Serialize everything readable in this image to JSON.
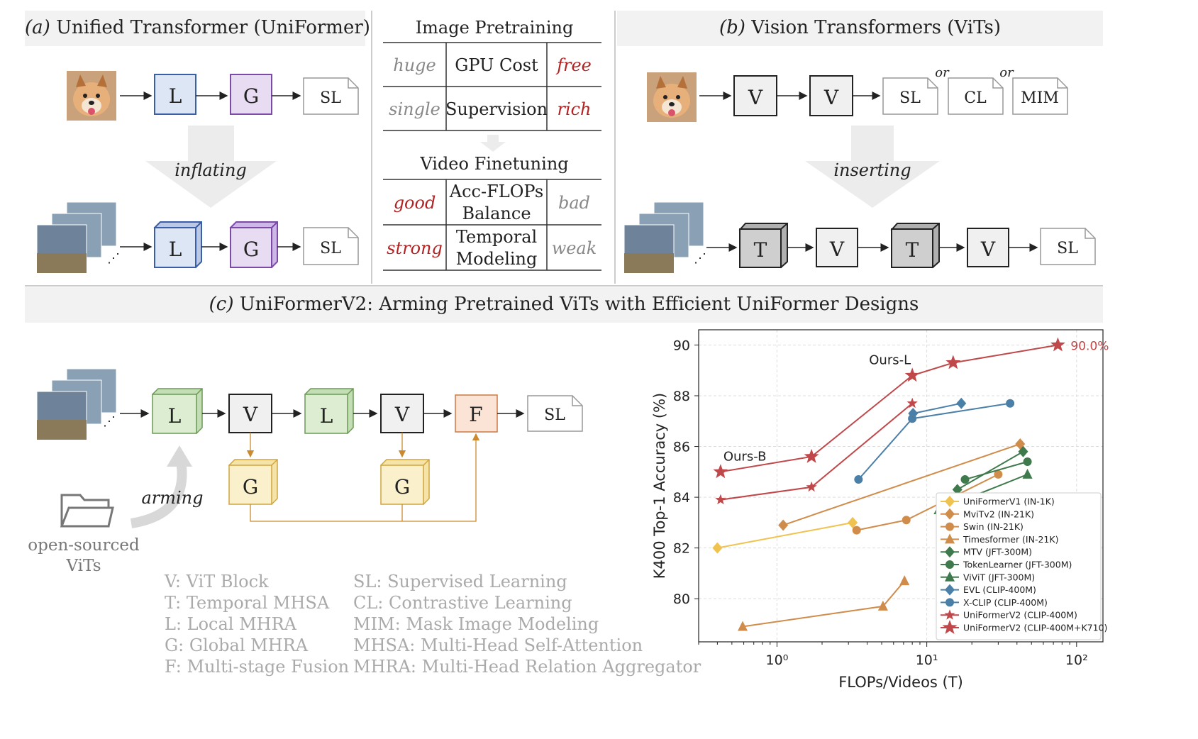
{
  "panel_a": {
    "label": "(a)",
    "title": "Unified Transformer (UniFormer)",
    "top_blocks": [
      "L",
      "G",
      "SL"
    ],
    "arrow_text": "inflating",
    "bottom_blocks": [
      "L",
      "G",
      "SL"
    ]
  },
  "panel_b": {
    "label": "(b)",
    "title": "Vision Transformers (ViTs)",
    "top_blocks": [
      "V",
      "V",
      "SL",
      "CL",
      "MIM"
    ],
    "or_1": "or",
    "or_2": "or",
    "arrow_text": "inserting",
    "bottom_blocks": [
      "T",
      "V",
      "T",
      "V",
      "SL"
    ]
  },
  "middle_tables": {
    "image_title": "Image Pretraining",
    "image_rows": [
      {
        "left": "huge",
        "center": "GPU Cost",
        "right": "free"
      },
      {
        "left": "single",
        "center": "Supervision",
        "right": "rich"
      }
    ],
    "video_title": "Video Finetuning",
    "video_rows": [
      {
        "left": "good",
        "center_1": "Acc-FLOPs",
        "center_2": "Balance",
        "right": "bad"
      },
      {
        "left": "strong",
        "center_1": "Temporal",
        "center_2": "Modeling",
        "right": "weak"
      }
    ]
  },
  "panel_c": {
    "label": "(c)",
    "title": "UniFormerV2: Arming Pretrained ViTs with Efficient UniFormer Designs",
    "blocks": [
      "L",
      "V",
      "L",
      "V",
      "F",
      "SL"
    ],
    "g_blocks": [
      "G",
      "G"
    ],
    "arming_text": "arming",
    "folder_caption_1": "open-sourced",
    "folder_caption_2": "ViTs",
    "legend_left": [
      "V: ViT Block",
      "T: Temporal MHSA",
      "L: Local MHRA",
      "G: Global MHRA",
      "F: Multi-stage Fusion"
    ],
    "legend_right": [
      "SL: Supervised Learning",
      "CL: Contrastive Learning",
      "MIM: Mask Image Modeling",
      "MHSA: Multi-Head Self-Attention",
      "MHRA: Multi-Head Relation Aggregator"
    ]
  },
  "chart_data": {
    "type": "line",
    "xlabel": "FLOPs/Videos (T)",
    "ylabel": "K400 Top-1 Accuracy (%)",
    "xscale": "log",
    "xlim": [
      0.3,
      150
    ],
    "ylim": [
      78.3,
      90.6
    ],
    "yticks": [
      80,
      82,
      84,
      86,
      88,
      90
    ],
    "xticks": [
      {
        "value": 1,
        "label": "10⁰"
      },
      {
        "value": 10,
        "label": "10¹"
      },
      {
        "value": 100,
        "label": "10²"
      }
    ],
    "grid": true,
    "legend_position": "bottom-right",
    "annotations": [
      {
        "text": "Ours-L",
        "x": 8.0,
        "y": 88.8
      },
      {
        "text": "Ours-B",
        "x": 0.42,
        "y": 85.0
      },
      {
        "text": "90.0%",
        "x": 75,
        "y": 90.0
      }
    ],
    "series": [
      {
        "name": "UniFormerV1 (IN-1K)",
        "color": "#f0c24f",
        "marker": "diamond",
        "points": [
          [
            0.4,
            82.0
          ],
          [
            3.2,
            83.0
          ]
        ]
      },
      {
        "name": "MviTv2 (IN-21K)",
        "color": "#d08c4a",
        "marker": "diamond",
        "points": [
          [
            1.1,
            82.9
          ],
          [
            42,
            86.1
          ]
        ]
      },
      {
        "name": "Swin (IN-21K)",
        "color": "#d08c4a",
        "marker": "circle",
        "points": [
          [
            3.4,
            82.7
          ],
          [
            7.3,
            83.1
          ],
          [
            30,
            84.9
          ]
        ]
      },
      {
        "name": "Timesformer (IN-21K)",
        "color": "#d08c4a",
        "marker": "triangle",
        "points": [
          [
            0.59,
            78.9
          ],
          [
            5.1,
            79.7
          ],
          [
            7.1,
            80.7
          ]
        ]
      },
      {
        "name": "MTV (JFT-300M)",
        "color": "#3f7a4c",
        "marker": "diamond",
        "points": [
          [
            16,
            84.3
          ],
          [
            44,
            85.8
          ]
        ]
      },
      {
        "name": "TokenLearner (JFT-300M)",
        "color": "#3f7a4c",
        "marker": "circle",
        "points": [
          [
            18,
            84.7
          ],
          [
            47,
            85.4
          ]
        ]
      },
      {
        "name": "ViViT (JFT-300M)",
        "color": "#3f7a4c",
        "marker": "triangle",
        "points": [
          [
            12,
            83.5
          ],
          [
            47,
            84.9
          ]
        ]
      },
      {
        "name": "EVL (CLIP-400M)",
        "color": "#4a7fa8",
        "marker": "diamond",
        "points": [
          [
            8.1,
            87.3
          ],
          [
            17,
            87.7
          ]
        ]
      },
      {
        "name": "X-CLIP (CLIP-400M)",
        "color": "#4a7fa8",
        "marker": "circle",
        "points": [
          [
            3.5,
            84.7
          ],
          [
            8.0,
            87.1
          ],
          [
            36,
            87.7
          ]
        ]
      },
      {
        "name": "UniFormerV2 (CLIP-400M)",
        "color": "#c0484a",
        "marker": "star-small",
        "points": [
          [
            0.42,
            83.9
          ],
          [
            1.7,
            84.4
          ],
          [
            8.0,
            87.7
          ]
        ]
      },
      {
        "name": "UniFormerV2 (CLIP-400M+K710)",
        "color": "#c0484a",
        "marker": "star",
        "points": [
          [
            0.42,
            85.0
          ],
          [
            1.7,
            85.6
          ],
          [
            8.0,
            88.8
          ],
          [
            15,
            89.3
          ],
          [
            75,
            90.0
          ]
        ]
      }
    ]
  }
}
